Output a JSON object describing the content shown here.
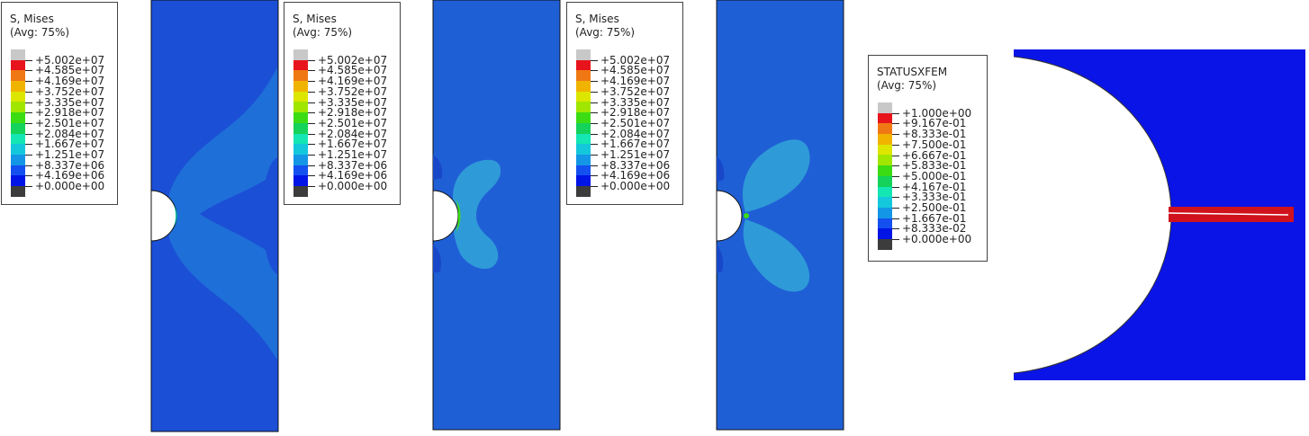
{
  "legend_mises": {
    "title": "S, Mises",
    "subtitle": "(Avg: 75%)",
    "labels": [
      "+5.002e+07",
      "+4.585e+07",
      "+4.169e+07",
      "+3.752e+07",
      "+3.335e+07",
      "+2.918e+07",
      "+2.501e+07",
      "+2.084e+07",
      "+1.667e+07",
      "+1.251e+07",
      "+8.337e+06",
      "+4.169e+06",
      "+0.000e+00"
    ]
  },
  "legend_status": {
    "title": "STATUSXFEM",
    "subtitle": "(Avg: 75%)",
    "labels": [
      "+1.000e+00",
      "+9.167e-01",
      "+8.333e-01",
      "+7.500e-01",
      "+6.667e-01",
      "+5.833e-01",
      "+5.000e-01",
      "+4.167e-01",
      "+3.333e-01",
      "+2.500e-01",
      "+1.667e-01",
      "+8.333e-02",
      "+0.000e+00"
    ]
  },
  "colormap": [
    "#c8c8c8",
    "#e8141c",
    "#f07814",
    "#f0b400",
    "#dce600",
    "#a0e600",
    "#3cdc14",
    "#14d25a",
    "#14e6b4",
    "#14c8dc",
    "#1496e6",
    "#1450f0",
    "#0014e6",
    "#3c3c3c"
  ],
  "colors": {
    "plate_base": "#1b4fd6",
    "plate_mid": "#1f6fd8",
    "plate_light": "#2f9ad8",
    "crack_red": "#d0121c"
  }
}
